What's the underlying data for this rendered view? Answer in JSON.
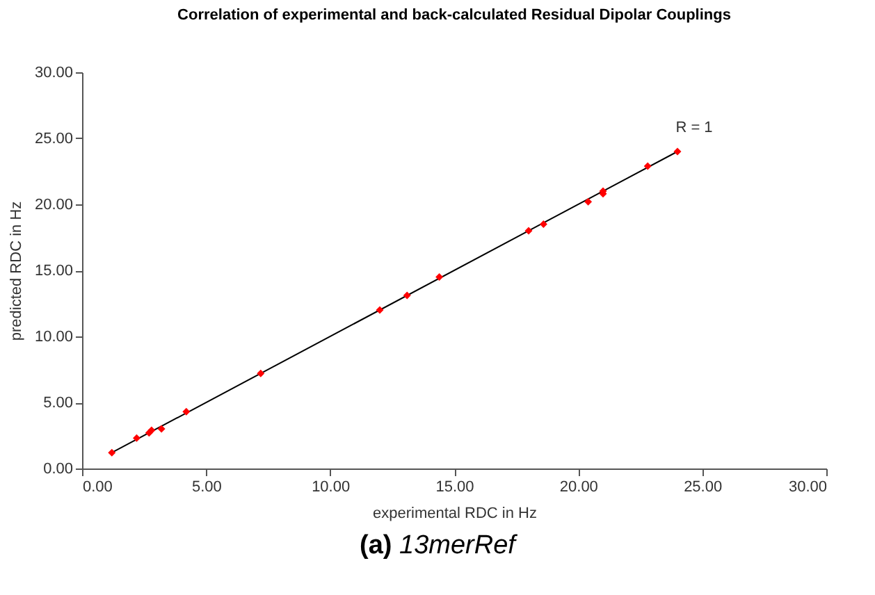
{
  "chart_data": {
    "type": "scatter",
    "title": "Correlation of experimental and back-calculated Residual Dipolar Couplings",
    "xlabel": "experimental RDC in Hz",
    "ylabel": "predicted RDC in Hz",
    "x": [
      1.2,
      2.2,
      2.7,
      2.8,
      3.2,
      4.2,
      7.2,
      12.0,
      13.1,
      14.4,
      18.0,
      18.6,
      20.4,
      21.0,
      21.0,
      22.8,
      24.0
    ],
    "series": [
      {
        "color": "#ff0000",
        "marker": "diamond",
        "values": [
          1.2,
          2.3,
          2.7,
          2.9,
          3.0,
          4.3,
          7.2,
          12.0,
          13.1,
          14.5,
          18.0,
          18.5,
          20.2,
          20.8,
          21.0,
          22.9,
          24.0
        ]
      },
      {
        "type": "line",
        "color": "#000000",
        "marker": "none",
        "x": [
          1.2,
          24.0
        ],
        "values": [
          1.2,
          24.0
        ]
      }
    ],
    "xlim": [
      0,
      30
    ],
    "ylim": [
      0,
      30
    ],
    "xticks": [
      {
        "value": 0,
        "label": "0.00"
      },
      {
        "value": 5,
        "label": "5.00"
      },
      {
        "value": 10,
        "label": "10.00"
      },
      {
        "value": 15,
        "label": "15.00"
      },
      {
        "value": 20,
        "label": "20.00"
      },
      {
        "value": 25,
        "label": "25.00"
      },
      {
        "value": 30,
        "label": "30.00"
      }
    ],
    "yticks": [
      {
        "value": 0,
        "label": "0.00"
      },
      {
        "value": 5,
        "label": "5.00"
      },
      {
        "value": 10,
        "label": "10.00"
      },
      {
        "value": 15,
        "label": "15.00"
      },
      {
        "value": 20,
        "label": "20.00"
      },
      {
        "value": 25,
        "label": "25.00"
      },
      {
        "value": 30,
        "label": "30.00"
      }
    ],
    "grid": false,
    "annotations": [
      "R = 1",
      "(a) 13merRef"
    ]
  }
}
